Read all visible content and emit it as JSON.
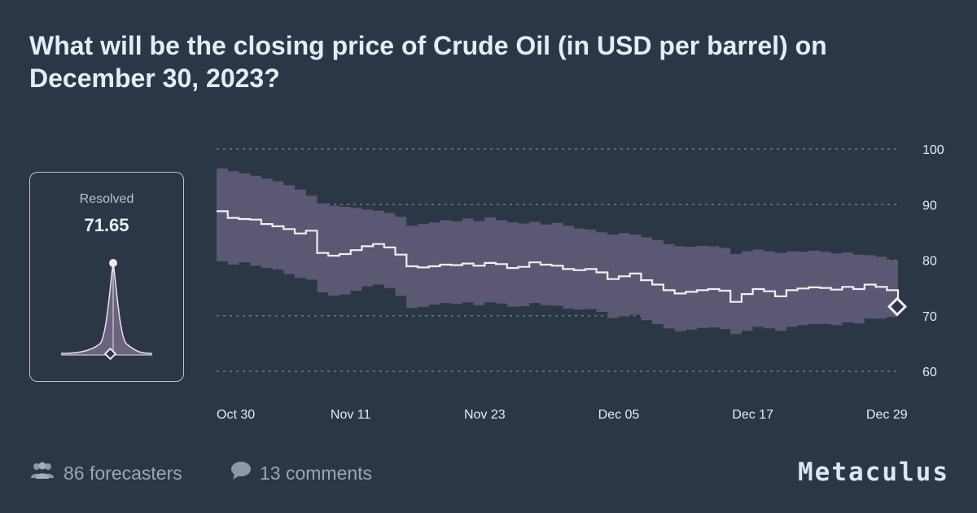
{
  "title": "What will be the closing price of Crude Oil (in USD per barrel) on December 30, 2023?",
  "resolution": {
    "label": "Resolved",
    "value": "71.65"
  },
  "footer": {
    "forecasters": "86 forecasters",
    "comments": "13 comments",
    "brand": "Metaculus"
  },
  "colors": {
    "background": "#2b3746",
    "band": "#5d5a75",
    "median_line": "#f2ecfa",
    "grid": "#7d8896",
    "card_border": "#cbb9d8"
  },
  "icons": {
    "forecasters": "users-icon",
    "comments": "speech-bubble-icon"
  },
  "chart_data": {
    "type": "line",
    "x_tick_labels": [
      "Oct 30",
      "Nov 11",
      "Nov 23",
      "Dec 05",
      "Dec 17",
      "Dec 29"
    ],
    "x_tick_days": [
      0,
      12,
      24,
      36,
      48,
      60
    ],
    "y_ticks": [
      100,
      90,
      80,
      70,
      60
    ],
    "ylim": [
      60,
      100
    ],
    "xlim": [
      0,
      61
    ],
    "grid": true,
    "series": [
      {
        "values_x": [
          0,
          1,
          2,
          3,
          4,
          5,
          6,
          7,
          8,
          9,
          10,
          11,
          12,
          13,
          14,
          15,
          16,
          17,
          18,
          19,
          20,
          21,
          22,
          23,
          24,
          25,
          26,
          27,
          28,
          29,
          30,
          31,
          32,
          33,
          34,
          35,
          36,
          37,
          38,
          39,
          40,
          41,
          42,
          43,
          44,
          45,
          46,
          47,
          48,
          49,
          50,
          51,
          52,
          53,
          54,
          55,
          56,
          57,
          58,
          59,
          60,
          61
        ],
        "median": [
          88.8,
          87.6,
          87.4,
          87.3,
          86.5,
          86.1,
          85.6,
          84.8,
          85.3,
          81.3,
          80.8,
          81.1,
          81.8,
          82.5,
          82.9,
          82.3,
          81.0,
          78.9,
          78.7,
          78.9,
          79.2,
          79.1,
          79.4,
          79.0,
          79.5,
          79.3,
          78.6,
          78.8,
          79.6,
          79.2,
          79.0,
          78.4,
          78.2,
          78.4,
          77.8,
          76.6,
          77.1,
          77.6,
          76.4,
          75.6,
          74.6,
          74.0,
          74.3,
          74.6,
          74.8,
          74.5,
          72.5,
          73.9,
          74.8,
          74.4,
          73.5,
          74.6,
          74.9,
          75.1,
          75.0,
          74.7,
          75.2,
          74.8,
          75.6,
          75.2,
          74.6,
          71.65
        ],
        "upper": [
          96.5,
          96.0,
          95.6,
          95.2,
          94.7,
          94.2,
          93.5,
          92.7,
          91.6,
          90.2,
          89.8,
          89.6,
          89.4,
          89.1,
          88.9,
          88.5,
          87.8,
          86.2,
          86.5,
          86.8,
          87.2,
          87.0,
          87.5,
          87.0,
          87.7,
          87.2,
          86.8,
          86.6,
          86.9,
          86.4,
          86.7,
          86.2,
          85.7,
          85.5,
          85.0,
          84.6,
          84.9,
          84.6,
          84.1,
          83.6,
          82.9,
          82.5,
          82.4,
          82.6,
          82.5,
          82.2,
          81.1,
          81.6,
          81.9,
          81.6,
          81.3,
          81.6,
          81.5,
          81.7,
          81.5,
          81.2,
          81.4,
          81.0,
          80.9,
          80.6,
          80.0,
          79.5
        ],
        "lower": [
          79.8,
          79.2,
          79.6,
          79.0,
          78.6,
          78.3,
          77.5,
          76.8,
          76.5,
          74.2,
          73.6,
          73.8,
          74.5,
          75.3,
          75.6,
          75.0,
          73.6,
          71.4,
          71.6,
          72.0,
          72.3,
          72.1,
          72.4,
          71.9,
          72.4,
          72.2,
          71.6,
          71.7,
          72.3,
          71.9,
          71.8,
          71.3,
          71.1,
          71.2,
          70.7,
          69.6,
          69.9,
          70.2,
          69.2,
          68.5,
          67.7,
          67.2,
          67.5,
          67.8,
          67.9,
          67.6,
          66.7,
          67.3,
          68.0,
          67.7,
          67.3,
          68.0,
          68.3,
          68.5,
          68.5,
          68.3,
          68.8,
          68.6,
          69.5,
          69.5,
          69.8,
          70.5
        ]
      }
    ],
    "resolution_value": 71.65,
    "resolution_day": 61
  }
}
